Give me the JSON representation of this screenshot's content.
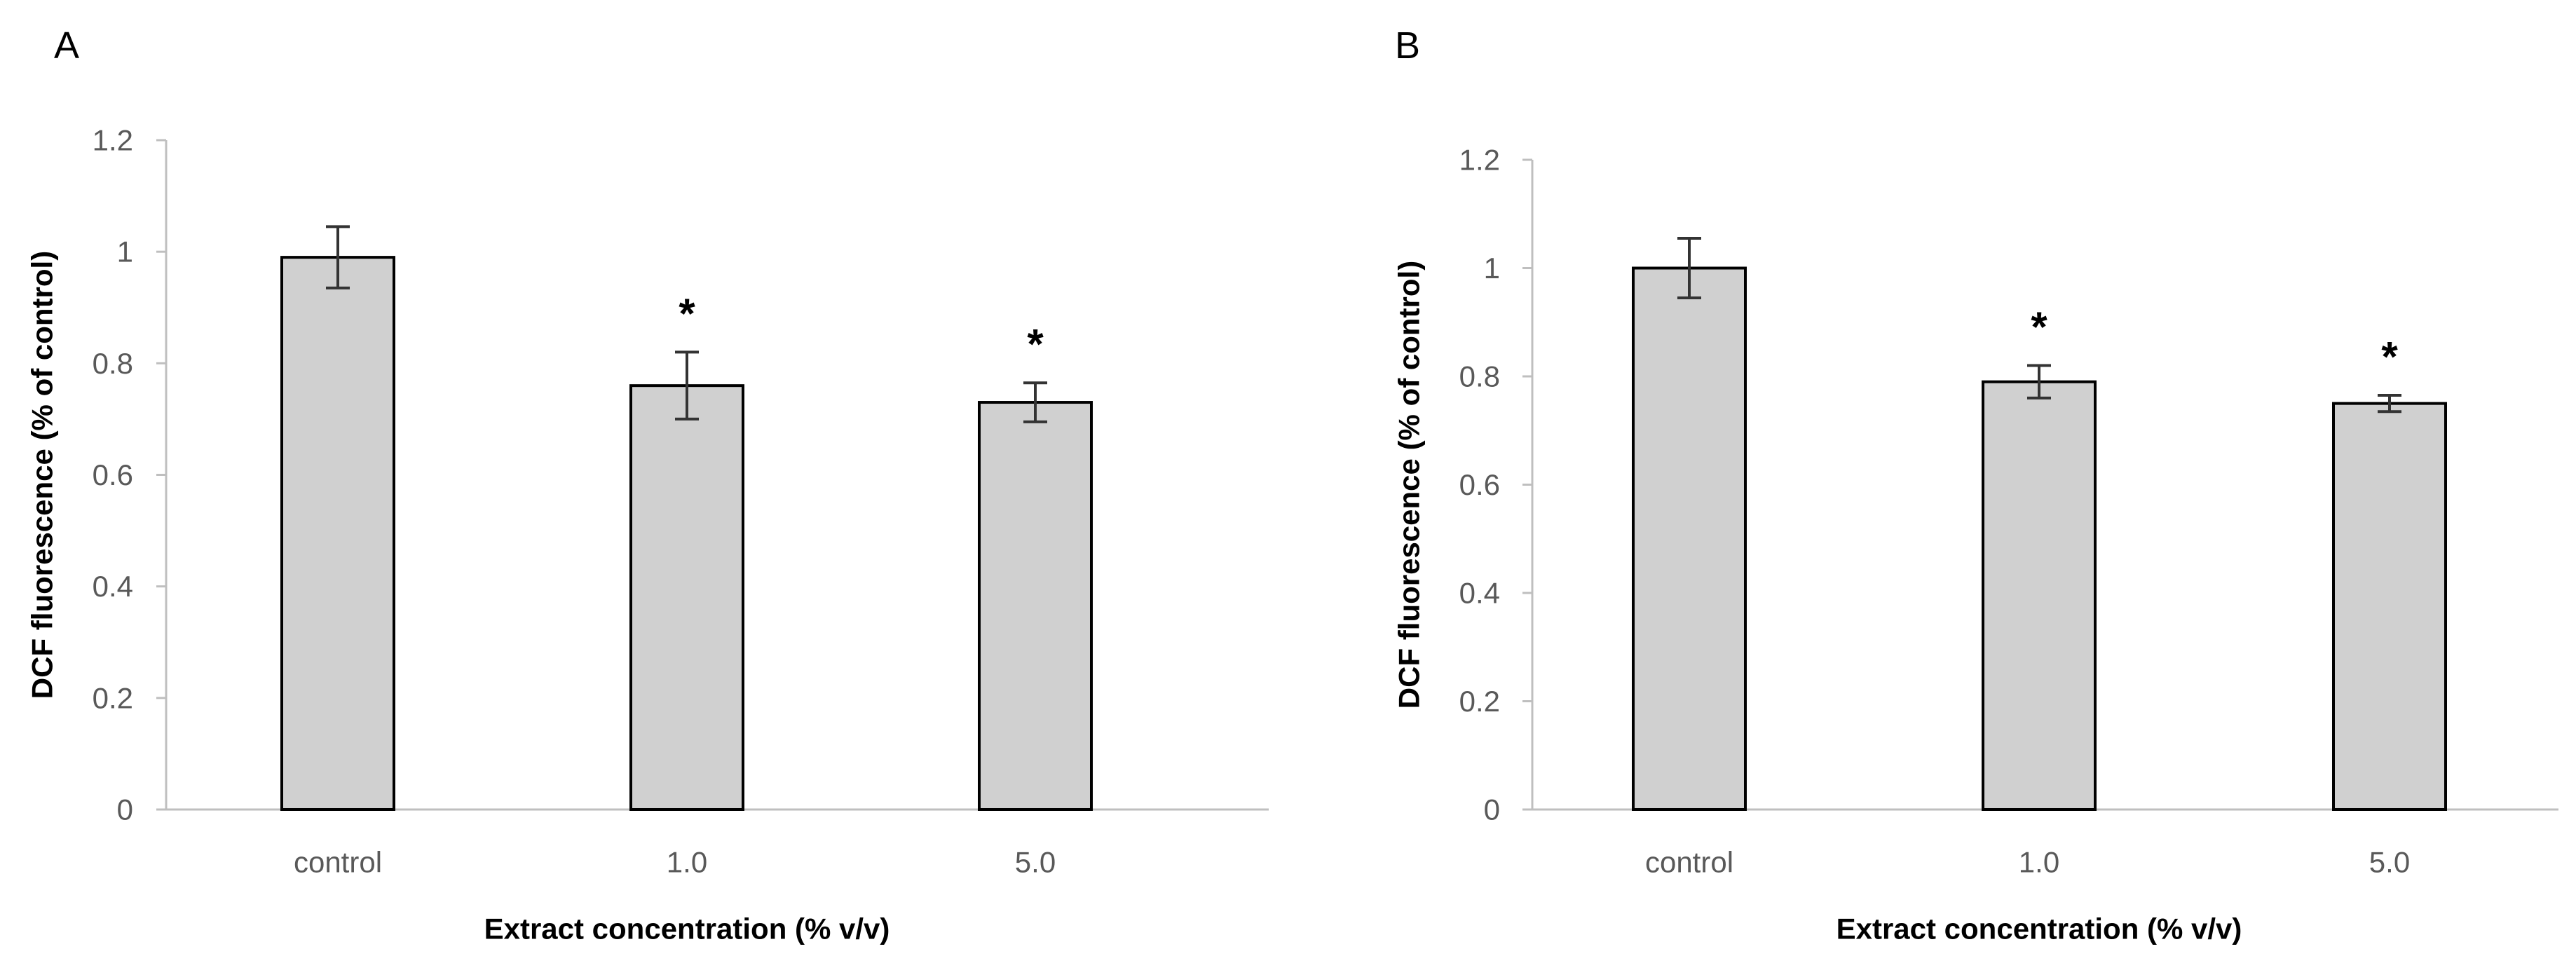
{
  "chart_data": [
    {
      "panel_label": "A",
      "type": "bar",
      "categories": [
        "control",
        "1.0",
        "5.0"
      ],
      "values": [
        0.99,
        0.76,
        0.73
      ],
      "errors": [
        0.055,
        0.06,
        0.035
      ],
      "significance": [
        "",
        "*",
        "*"
      ],
      "xlabel": "Extract concentration (% v/v)",
      "ylabel": "DCF fluorescence (% of control)",
      "ylim": [
        0,
        1.2
      ],
      "yticks": [
        "0",
        "0.2",
        "0.4",
        "0.6",
        "0.8",
        "1",
        "1.2"
      ],
      "grid": false,
      "legend": "none",
      "colors": {
        "bar_fill": "#d0d0d0",
        "bar_stroke": "#000000",
        "axis": "#bfbfbf",
        "error": "#333333"
      }
    },
    {
      "panel_label": "B",
      "type": "bar",
      "categories": [
        "control",
        "1.0",
        "5.0"
      ],
      "values": [
        1.0,
        0.79,
        0.75
      ],
      "errors": [
        0.055,
        0.03,
        0.015
      ],
      "significance": [
        "",
        "*",
        "*"
      ],
      "xlabel": "Extract concentration (% v/v)",
      "ylabel": "DCF fluorescence (% of control)",
      "ylim": [
        0,
        1.2
      ],
      "yticks": [
        "0",
        "0.2",
        "0.4",
        "0.6",
        "0.8",
        "1",
        "1.2"
      ],
      "grid": false,
      "legend": "none",
      "colors": {
        "bar_fill": "#d0d0d0",
        "bar_stroke": "#000000",
        "axis": "#bfbfbf",
        "error": "#333333"
      }
    }
  ]
}
